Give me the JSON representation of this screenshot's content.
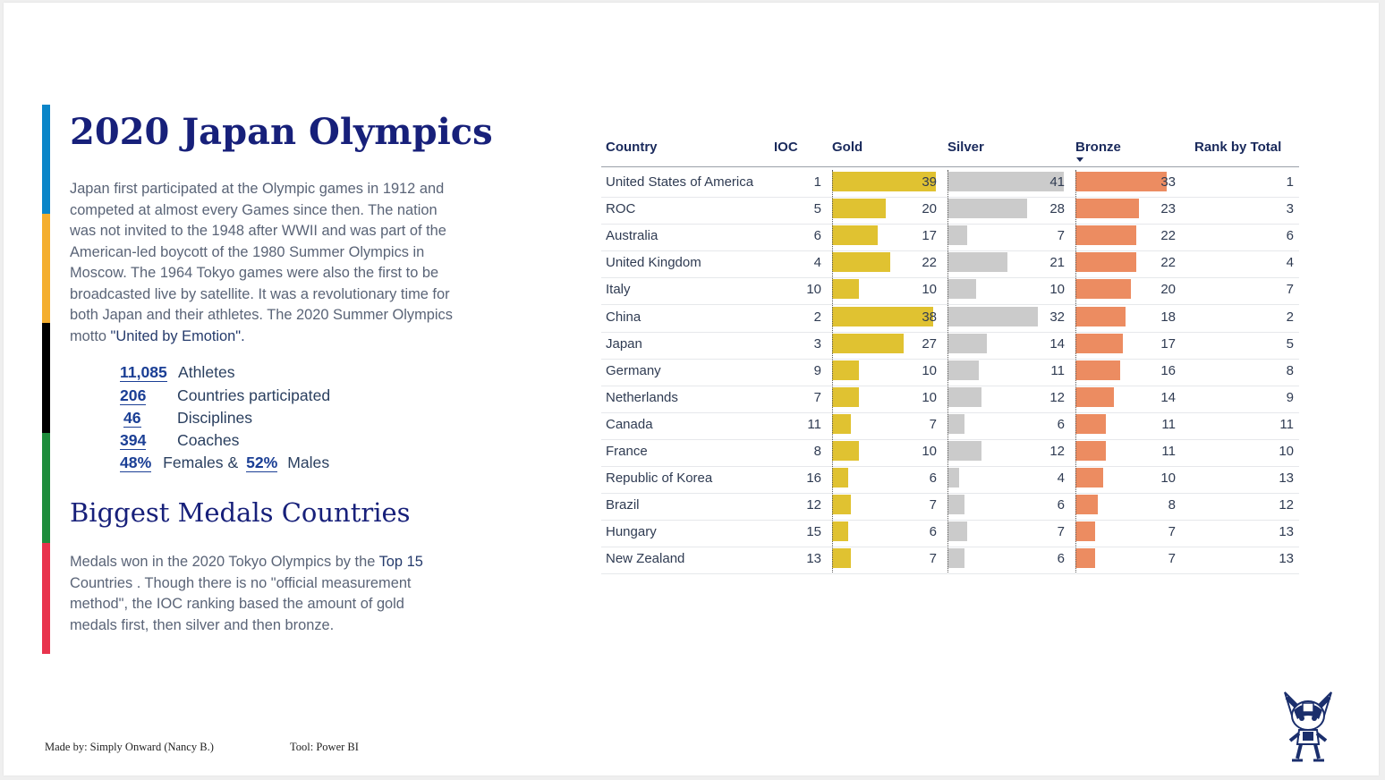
{
  "title": "2020 Japan Olympics",
  "intro": {
    "text": "Japan first participated at the Olympic games in 1912 and competed at almost every Games since then. The nation was not invited to the 1948 after WWII and was part of the American-led boycott of the 1980 Summer Olympics in Moscow. The 1964 Tokyo games were also the first to be broadcasted live by satellite. It was a revolutionary time for both Japan and their athletes.  The 2020 Summer Olympics motto ",
    "motto": "\"United by Emotion\"."
  },
  "stats": [
    {
      "value": "11,085",
      "label": "Athletes"
    },
    {
      "value": "206",
      "label": "Countries participated"
    },
    {
      "value": "46",
      "label": "Disciplines"
    },
    {
      "value": "394",
      "label": "Coaches"
    }
  ],
  "gender": {
    "female_value": "48%",
    "female_label": "Females &",
    "male_value": "52%",
    "male_label": "Males"
  },
  "section_title": "Biggest Medals Countries",
  "section_desc": {
    "before": "Medals won in the 2020 Tokyo Olympics by the ",
    "highlight": "Top 15",
    "after": " Countries . Though there is no \"official measurement method\", the IOC ranking based the amount of gold medals first, then silver and then bronze."
  },
  "footer": {
    "made_by": "Made by: Simply Onward (Nancy B.)",
    "tool": "Tool: Power BI"
  },
  "stripe_colors": [
    "#0a85c8",
    "#f4ae2f",
    "#000000",
    "#1e8c3c",
    "#e8334d"
  ],
  "table": {
    "headers": {
      "country": "Country",
      "ioc": "IOC",
      "gold": "Gold",
      "silver": "Silver",
      "bronze": "Bronze",
      "rank": "Rank by Total"
    },
    "sorted_by": "Bronze",
    "colors": {
      "gold": "#e0c231",
      "silver": "#cbcbcb",
      "bronze": "#ec8c61"
    },
    "rows": [
      {
        "country": "United States of America",
        "ioc": 1,
        "gold": 39,
        "silver": 41,
        "bronze": 33,
        "rank": 1
      },
      {
        "country": "ROC",
        "ioc": 5,
        "gold": 20,
        "silver": 28,
        "bronze": 23,
        "rank": 3
      },
      {
        "country": "Australia",
        "ioc": 6,
        "gold": 17,
        "silver": 7,
        "bronze": 22,
        "rank": 6
      },
      {
        "country": "United Kingdom",
        "ioc": 4,
        "gold": 22,
        "silver": 21,
        "bronze": 22,
        "rank": 4
      },
      {
        "country": "Italy",
        "ioc": 10,
        "gold": 10,
        "silver": 10,
        "bronze": 20,
        "rank": 7
      },
      {
        "country": "China",
        "ioc": 2,
        "gold": 38,
        "silver": 32,
        "bronze": 18,
        "rank": 2
      },
      {
        "country": "Japan",
        "ioc": 3,
        "gold": 27,
        "silver": 14,
        "bronze": 17,
        "rank": 5
      },
      {
        "country": "Germany",
        "ioc": 9,
        "gold": 10,
        "silver": 11,
        "bronze": 16,
        "rank": 8
      },
      {
        "country": "Netherlands",
        "ioc": 7,
        "gold": 10,
        "silver": 12,
        "bronze": 14,
        "rank": 9
      },
      {
        "country": "Canada",
        "ioc": 11,
        "gold": 7,
        "silver": 6,
        "bronze": 11,
        "rank": 11
      },
      {
        "country": "France",
        "ioc": 8,
        "gold": 10,
        "silver": 12,
        "bronze": 11,
        "rank": 10
      },
      {
        "country": "Republic of Korea",
        "ioc": 16,
        "gold": 6,
        "silver": 4,
        "bronze": 10,
        "rank": 13
      },
      {
        "country": "Brazil",
        "ioc": 12,
        "gold": 7,
        "silver": 6,
        "bronze": 8,
        "rank": 12
      },
      {
        "country": "Hungary",
        "ioc": 15,
        "gold": 6,
        "silver": 7,
        "bronze": 7,
        "rank": 13
      },
      {
        "country": "New Zealand",
        "ioc": 13,
        "gold": 7,
        "silver": 6,
        "bronze": 7,
        "rank": 13
      }
    ]
  }
}
